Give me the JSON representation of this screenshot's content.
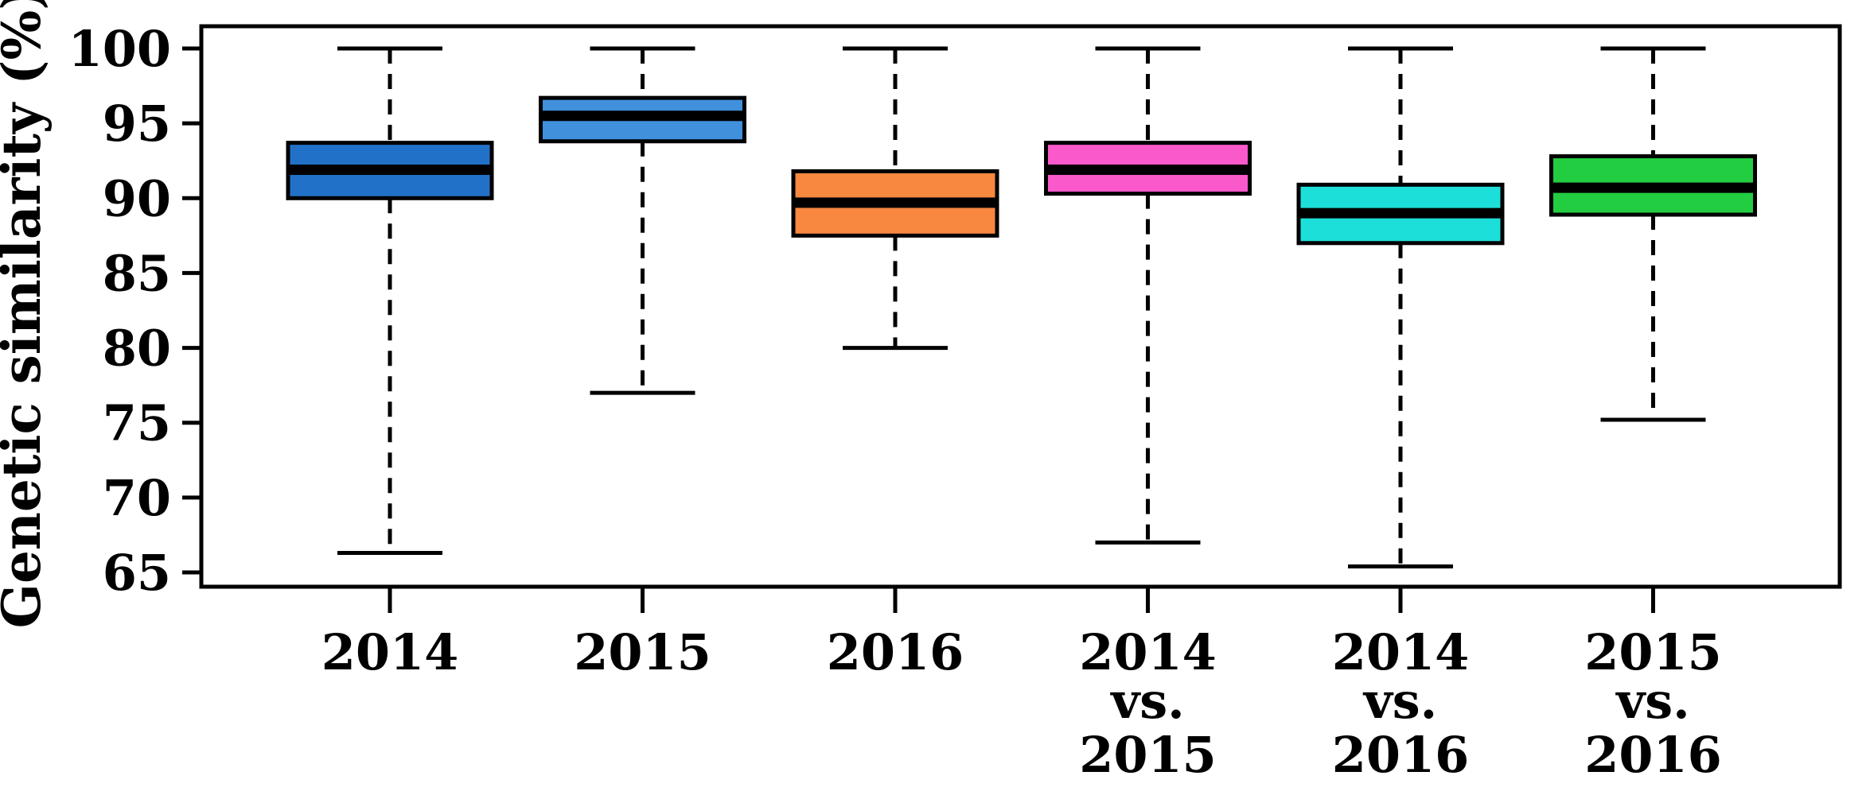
{
  "figure": {
    "background": "#ffffff",
    "frame_color": "#000000"
  },
  "chart_data": {
    "type": "boxplot",
    "title": "",
    "xlabel": "",
    "ylabel": "Genetic similarity (%)",
    "ylim": [
      64,
      101.5
    ],
    "yticks": [
      65,
      70,
      75,
      80,
      85,
      90,
      95,
      100
    ],
    "grid": false,
    "legend": "none",
    "categories": [
      "2014",
      "2015",
      "2016",
      "2014 vs. 2015",
      "2014 vs. 2016",
      "2015 vs. 2016"
    ],
    "category_label_lines": [
      [
        "2014"
      ],
      [
        "2015"
      ],
      [
        "2016"
      ],
      [
        "2014",
        "vs.",
        "2015"
      ],
      [
        "2014",
        "vs.",
        "2016"
      ],
      [
        "2015",
        "vs.",
        "2016"
      ]
    ],
    "series": [
      {
        "name": "2014",
        "color": "#2271C8",
        "whisker_low": 66.3,
        "q1": 90.0,
        "median": 91.9,
        "q3": 93.7,
        "whisker_high": 100
      },
      {
        "name": "2015",
        "color": "#4090DC",
        "whisker_low": 77.0,
        "q1": 93.8,
        "median": 95.5,
        "q3": 96.7,
        "whisker_high": 100
      },
      {
        "name": "2016",
        "color": "#F8873F",
        "whisker_low": 80.0,
        "q1": 87.5,
        "median": 89.7,
        "q3": 91.8,
        "whisker_high": 100
      },
      {
        "name": "2014 vs. 2015",
        "color": "#FA59CC",
        "whisker_low": 67.0,
        "q1": 90.3,
        "median": 91.9,
        "q3": 93.7,
        "whisker_high": 100
      },
      {
        "name": "2014 vs. 2016",
        "color": "#1DDFD9",
        "whisker_low": 65.4,
        "q1": 87.0,
        "median": 89.0,
        "q3": 90.9,
        "whisker_high": 100
      },
      {
        "name": "2015 vs. 2016",
        "color": "#23CD41",
        "whisker_low": 75.2,
        "q1": 88.9,
        "median": 90.7,
        "q3": 92.8,
        "whisker_high": 100
      }
    ],
    "box_line_color": "#000000",
    "median_color": "#000000",
    "whisker_style": "dashed"
  }
}
